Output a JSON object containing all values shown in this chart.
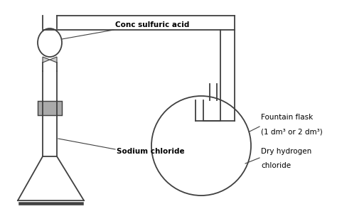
{
  "line_color": "#404040",
  "gray_color": "#999999",
  "label_conc_sulfuric": "Conc sulfuric acid",
  "label_sodium_chloride": "Sodium chloride",
  "label_fountain_flask_1": "Fountain flask",
  "label_fountain_flask_2": "(1 dm³ or 2 dm³)",
  "label_dry_hcl_1": "Dry hydrogen",
  "label_dry_hcl_2": "chloride",
  "lw": 1.3,
  "fig_w": 4.74,
  "fig_h": 3.01,
  "dpi": 100
}
